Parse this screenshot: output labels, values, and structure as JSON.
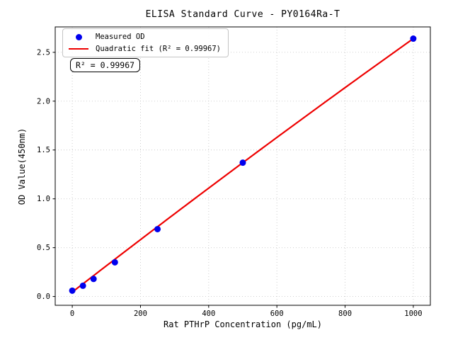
{
  "figure": {
    "title": "ELISA Standard Curve - PY0164Ra-T",
    "x_label": "Rat PTHrP Concentration (pg/mL)",
    "y_label": "OD Value(450nm)",
    "annotation": "R² = 0.99967",
    "legend": [
      {
        "label": "Measured OD",
        "marker": "dot",
        "color": "#0000ee"
      },
      {
        "label": "Quadratic fit (R² = 0.99967)",
        "marker": "line",
        "color": "#ee0000"
      }
    ]
  },
  "chart_data": {
    "type": "scatter",
    "title": "ELISA Standard Curve - PY0164Ra-T",
    "xlabel": "Rat PTHrP Concentration (pg/mL)",
    "ylabel": "OD Value(450nm)",
    "xlim": [
      -50,
      1050
    ],
    "ylim": [
      -0.09,
      2.76
    ],
    "x_ticks": [
      0,
      200,
      400,
      600,
      800,
      1000
    ],
    "y_ticks": [
      0.0,
      0.5,
      1.0,
      1.5,
      2.0,
      2.5
    ],
    "grid": true,
    "grid_style": "dotted",
    "legend_position": "upper left",
    "series": [
      {
        "name": "Measured OD",
        "type": "scatter",
        "color": "#0000ee",
        "x": [
          0,
          31.25,
          62.5,
          125,
          250,
          500,
          1000
        ],
        "y": [
          0.06,
          0.11,
          0.18,
          0.35,
          0.69,
          1.37,
          2.64
        ]
      },
      {
        "name": "Quadratic fit (R² = 0.99967)",
        "type": "line",
        "color": "#ee0000",
        "r_squared": 0.99967,
        "fit_points": [
          [
            0,
            0.045
          ],
          [
            500,
            1.37
          ],
          [
            1000,
            2.64
          ]
        ]
      }
    ],
    "annotation": {
      "text": "R² = 0.99967",
      "x": 30,
      "y": 2.35
    }
  },
  "style": {
    "grid_color": "#c9c9c9",
    "spine_color": "#000000",
    "tick_label_color": "#000000",
    "marker_radius": 4.5,
    "line_width": 2.2
  }
}
